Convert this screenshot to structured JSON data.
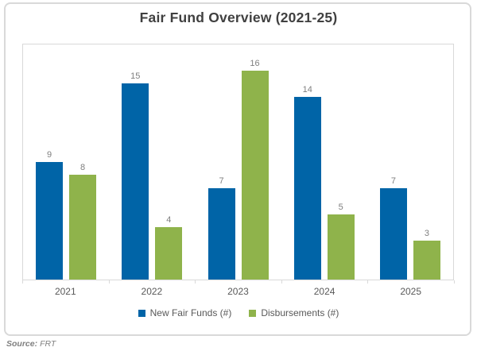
{
  "title": "Fair Fund Overview (2021-25)",
  "source": {
    "label": "Source:",
    "value": "FRT"
  },
  "colors": {
    "bar_blue": "#0064A7",
    "bar_green": "#8FB34B",
    "card_border": "#D9D9D9",
    "title_text": "#404040",
    "axis_text": "#595959",
    "value_label_text": "#7F7F7F"
  },
  "chart_data": {
    "type": "bar",
    "title": "Fair Fund Overview (2021-25)",
    "categories": [
      "2021",
      "2022",
      "2023",
      "2024",
      "2025"
    ],
    "series": [
      {
        "name": "New Fair Funds (#)",
        "color": "#0064A7",
        "values": [
          9,
          15,
          7,
          14,
          7
        ]
      },
      {
        "name": "Disbursements (#)",
        "color": "#8FB34B",
        "values": [
          8,
          4,
          16,
          5,
          3
        ]
      }
    ],
    "data_labels": true,
    "xlabel": "",
    "ylabel": "",
    "ylim": [
      0,
      18
    ],
    "grid": false,
    "legend_position": "bottom"
  }
}
